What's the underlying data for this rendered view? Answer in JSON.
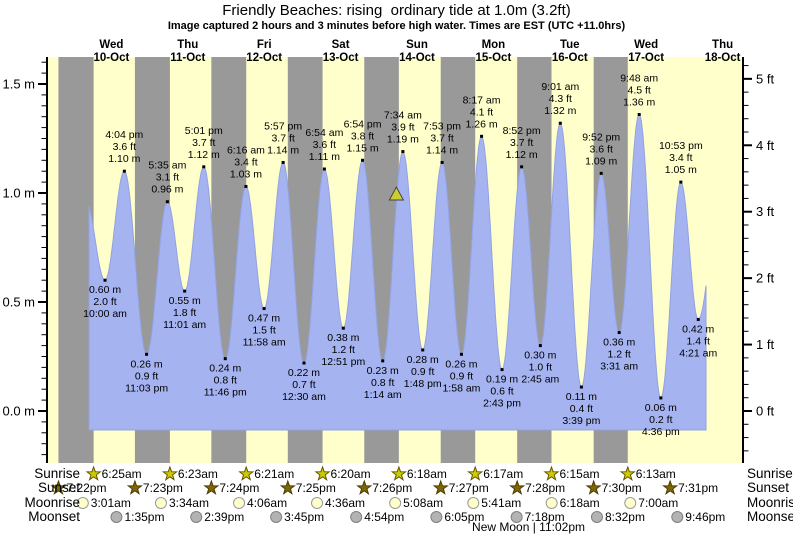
{
  "title": "Friendly Beaches: rising  ordinary tide at 1.0m (3.2ft)",
  "subtitle": "Image captured 2 hours and 3 minutes before high water. Times are EST (UTC +11.0hrs)",
  "chart_data": {
    "type": "area",
    "title": "Friendly Beaches: rising  ordinary tide at 1.0m (3.2ft)",
    "subtitle": "Image captured 2 hours and 3 minutes before high water. Times are EST (UTC +11.0hrs)",
    "days": [
      {
        "weekday": "Wed",
        "date": "10-Oct"
      },
      {
        "weekday": "Thu",
        "date": "11-Oct"
      },
      {
        "weekday": "Fri",
        "date": "12-Oct"
      },
      {
        "weekday": "Sat",
        "date": "13-Oct"
      },
      {
        "weekday": "Sun",
        "date": "14-Oct"
      },
      {
        "weekday": "Mon",
        "date": "15-Oct"
      },
      {
        "weekday": "Tue",
        "date": "16-Oct"
      },
      {
        "weekday": "Wed",
        "date": "17-Oct"
      },
      {
        "weekday": "Thu",
        "date": "18-Oct"
      }
    ],
    "y_left": {
      "unit": "m",
      "labels": [
        "0.0 m",
        "0.5 m",
        "1.0 m",
        "1.5 m"
      ]
    },
    "y_right": {
      "unit": "ft",
      "labels": [
        "0 ft",
        "1 ft",
        "2 ft",
        "3 ft",
        "4 ft",
        "5 ft"
      ]
    },
    "tide_events": [
      {
        "d": 0,
        "kind": "low",
        "time": "10:00 am",
        "m": 0.6,
        "ft": 2.0
      },
      {
        "d": 0,
        "kind": "high",
        "time": "4:04 pm",
        "m": 1.1,
        "ft": 3.6
      },
      {
        "d": 0,
        "kind": "low",
        "time": "11:03 pm",
        "m": 0.26,
        "ft": 0.9
      },
      {
        "d": 1,
        "kind": "high",
        "time": "5:35 am",
        "m": 0.96,
        "ft": 3.1
      },
      {
        "d": 1,
        "kind": "low",
        "time": "11:01 am",
        "m": 0.55,
        "ft": 1.8
      },
      {
        "d": 1,
        "kind": "high",
        "time": "5:01 pm",
        "m": 1.12,
        "ft": 3.7
      },
      {
        "d": 1,
        "kind": "low",
        "time": "11:46 pm",
        "m": 0.24,
        "ft": 0.8
      },
      {
        "d": 2,
        "kind": "high",
        "time": "6:16 am",
        "m": 1.03,
        "ft": 3.4
      },
      {
        "d": 2,
        "kind": "low",
        "time": "11:58 am",
        "m": 0.47,
        "ft": 1.5
      },
      {
        "d": 2,
        "kind": "high",
        "time": "5:57 pm",
        "m": 1.14,
        "ft": 3.7
      },
      {
        "d": 3,
        "kind": "low",
        "time": "12:30 am",
        "m": 0.22,
        "ft": 0.7
      },
      {
        "d": 3,
        "kind": "high",
        "time": "6:54 am",
        "m": 1.11,
        "ft": 3.6
      },
      {
        "d": 3,
        "kind": "low",
        "time": "12:51 pm",
        "m": 0.38,
        "ft": 1.2
      },
      {
        "d": 3,
        "kind": "high",
        "time": "6:54 pm",
        "m": 1.15,
        "ft": 3.8
      },
      {
        "d": 4,
        "kind": "low",
        "time": "1:14 am",
        "m": 0.23,
        "ft": 0.8
      },
      {
        "d": 4,
        "kind": "high",
        "time": "7:34 am",
        "m": 1.19,
        "ft": 3.9
      },
      {
        "d": 4,
        "kind": "low",
        "time": "1:48 pm",
        "m": 0.28,
        "ft": 0.9
      },
      {
        "d": 4,
        "kind": "high",
        "time": "7:53 pm",
        "m": 1.14,
        "ft": 3.7
      },
      {
        "d": 5,
        "kind": "low",
        "time": "1:58 am",
        "m": 0.26,
        "ft": 0.9
      },
      {
        "d": 5,
        "kind": "high",
        "time": "8:17 am",
        "m": 1.26,
        "ft": 4.1
      },
      {
        "d": 5,
        "kind": "low",
        "time": "2:43 pm",
        "m": 0.19,
        "ft": 0.6
      },
      {
        "d": 5,
        "kind": "high",
        "time": "8:52 pm",
        "m": 1.12,
        "ft": 3.7
      },
      {
        "d": 6,
        "kind": "low",
        "time": "2:45 am",
        "m": 0.3,
        "ft": 1.0
      },
      {
        "d": 6,
        "kind": "high",
        "time": "9:01 am",
        "m": 1.32,
        "ft": 4.3
      },
      {
        "d": 6,
        "kind": "low",
        "time": "3:39 pm",
        "m": 0.11,
        "ft": 0.4
      },
      {
        "d": 6,
        "kind": "high",
        "time": "9:52 pm",
        "m": 1.09,
        "ft": 3.6
      },
      {
        "d": 7,
        "kind": "low",
        "time": "3:31 am",
        "m": 0.36,
        "ft": 1.2
      },
      {
        "d": 7,
        "kind": "high",
        "time": "9:48 am",
        "m": 1.36,
        "ft": 4.5
      },
      {
        "d": 7,
        "kind": "low",
        "time": "4:36 pm",
        "m": 0.06,
        "ft": 0.2
      },
      {
        "d": 7,
        "kind": "high",
        "time": "10:53 pm",
        "m": 1.05,
        "ft": 3.4
      },
      {
        "d": 8,
        "kind": "low",
        "time": "4:21 am",
        "m": 0.42,
        "ft": 1.4
      }
    ],
    "curve_anchors": [
      {
        "d": 0,
        "time": "3:50 am",
        "m": 0.97
      },
      {
        "d": 8,
        "time": "11:45 am",
        "m": 1.05
      }
    ],
    "current_marker": {
      "d": 4,
      "time": "5:31 am",
      "m": 1.0
    },
    "astro": {
      "rows": [
        {
          "key": "sunrise",
          "label": "Sunrise",
          "marker": "star-yellow",
          "events": [
            {
              "d": 0,
              "time": "6:25am"
            },
            {
              "d": 1,
              "time": "6:23am"
            },
            {
              "d": 2,
              "time": "6:21am"
            },
            {
              "d": 3,
              "time": "6:20am"
            },
            {
              "d": 4,
              "time": "6:18am"
            },
            {
              "d": 5,
              "time": "6:17am"
            },
            {
              "d": 6,
              "time": "6:15am"
            },
            {
              "d": 7,
              "time": "6:13am"
            }
          ]
        },
        {
          "key": "sunset",
          "label": "Sunset",
          "marker": "star-dark",
          "events": [
            {
              "d": -1,
              "time": "7:22pm"
            },
            {
              "d": 0,
              "time": "7:23pm"
            },
            {
              "d": 1,
              "time": "7:24pm"
            },
            {
              "d": 2,
              "time": "7:25pm"
            },
            {
              "d": 3,
              "time": "7:26pm"
            },
            {
              "d": 4,
              "time": "7:27pm"
            },
            {
              "d": 5,
              "time": "7:28pm"
            },
            {
              "d": 6,
              "time": "7:30pm"
            },
            {
              "d": 7,
              "time": "7:31pm"
            }
          ]
        },
        {
          "key": "moonrise",
          "label": "Moonrise",
          "marker": "circle-light",
          "events": [
            {
              "d": 0,
              "time": "3:01am"
            },
            {
              "d": 1,
              "time": "3:34am"
            },
            {
              "d": 2,
              "time": "4:06am"
            },
            {
              "d": 3,
              "time": "4:36am"
            },
            {
              "d": 4,
              "time": "5:08am"
            },
            {
              "d": 5,
              "time": "5:41am"
            },
            {
              "d": 6,
              "time": "6:18am"
            },
            {
              "d": 7,
              "time": "7:00am"
            }
          ]
        },
        {
          "key": "moonset",
          "label": "Moonset",
          "marker": "circle-gray",
          "events": [
            {
              "d": 0,
              "time": "1:35pm"
            },
            {
              "d": 1,
              "time": "2:39pm"
            },
            {
              "d": 2,
              "time": "3:45pm"
            },
            {
              "d": 3,
              "time": "4:54pm"
            },
            {
              "d": 4,
              "time": "6:05pm"
            },
            {
              "d": 5,
              "time": "7:18pm"
            },
            {
              "d": 6,
              "time": "8:32pm"
            },
            {
              "d": 7,
              "time": "9:46pm"
            }
          ]
        }
      ],
      "new_moon": {
        "label": "New Moon | 11:02pm",
        "d": 5,
        "time": "11:02pm"
      }
    },
    "colors": {
      "day_band": "#ffffcc",
      "night_band": "#999999",
      "tide_fill": "#a5b3f0",
      "tide_stroke": "#93a2e0",
      "day_label": "#ff3333",
      "current_marker_fill": "#cccc33",
      "current_marker_stroke": "#444444",
      "sunrise_star": "#cccc00",
      "sunrise_star_stroke": "#665500",
      "sunset_star": "#7d6608",
      "sunset_star_stroke": "#4d3d00",
      "moon_light": "#ffffcc",
      "moon_light_stroke": "#999999",
      "moon_gray": "#b3b3b3",
      "moon_gray_stroke": "#808080"
    }
  },
  "astro_side_labels": {
    "sunrise": "Sunrise",
    "sunset": "Sunset",
    "moonrise": "Moonrise",
    "moonset": "Moonset"
  }
}
